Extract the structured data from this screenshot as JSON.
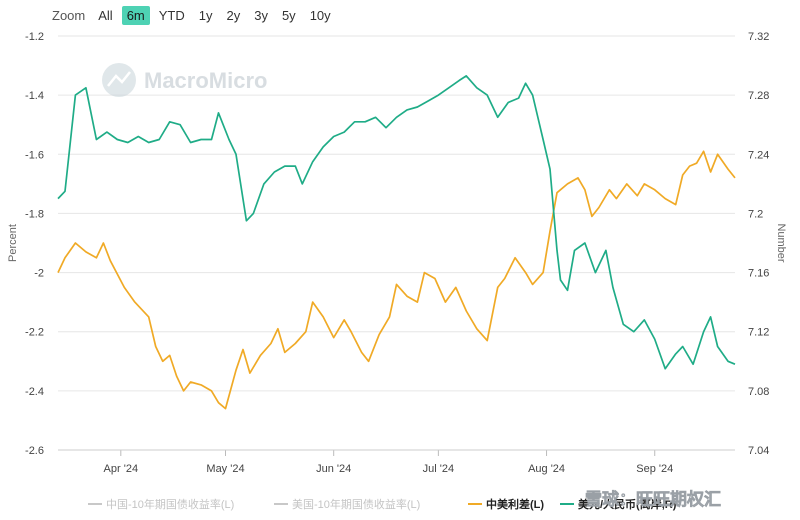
{
  "toolbar": {
    "zoom_label": "Zoom",
    "buttons": [
      "All",
      "6m",
      "YTD",
      "1y",
      "2y",
      "3y",
      "5y",
      "10y"
    ],
    "active": "6m"
  },
  "watermark": "MacroMicro",
  "footer_mark": "雪球：旺旺期权汇",
  "colors": {
    "spread": "#f0aa26",
    "usdcny": "#1fac87",
    "hidden": "#c8c8c8",
    "grid": "#e6e6e6",
    "active_button": "#4ed2b4"
  },
  "chart_data": {
    "type": "line",
    "x_labels": [
      "Apr '24",
      "May '24",
      "Jun '24",
      "Jul '24",
      "Aug '24",
      "Sep '24"
    ],
    "x_range": [
      "2024-03-14",
      "2024-09-24"
    ],
    "left_axis": {
      "title": "Percent",
      "ylim": [
        -2.6,
        -1.2
      ],
      "ticks": [
        "-1.2",
        "-1.4",
        "-1.6",
        "-1.8",
        "-2",
        "-2.2",
        "-2.4",
        "-2.6"
      ]
    },
    "right_axis": {
      "title": "Number",
      "ylim": [
        7.04,
        7.32
      ],
      "ticks": [
        "7.32",
        "7.28",
        "7.24",
        "7.2",
        "7.16",
        "7.12",
        "7.08",
        "7.04"
      ]
    },
    "legend": [
      {
        "name": "中国-10年期国债收益率(L)",
        "visible": false
      },
      {
        "name": "美国-10年期国债收益率(L)",
        "visible": false
      },
      {
        "name": "中美利差(L)",
        "visible": true
      },
      {
        "name": "美元/人民币(离岸,R)",
        "visible": true
      }
    ],
    "series": [
      {
        "name": "中美利差(L)",
        "axis": "left",
        "points": [
          [
            "2024-03-14",
            -2.0
          ],
          [
            "2024-03-16",
            -1.95
          ],
          [
            "2024-03-19",
            -1.9
          ],
          [
            "2024-03-22",
            -1.93
          ],
          [
            "2024-03-25",
            -1.95
          ],
          [
            "2024-03-27",
            -1.9
          ],
          [
            "2024-03-29",
            -1.96
          ],
          [
            "2024-04-02",
            -2.05
          ],
          [
            "2024-04-05",
            -2.1
          ],
          [
            "2024-04-09",
            -2.15
          ],
          [
            "2024-04-11",
            -2.25
          ],
          [
            "2024-04-13",
            -2.3
          ],
          [
            "2024-04-15",
            -2.28
          ],
          [
            "2024-04-17",
            -2.35
          ],
          [
            "2024-04-19",
            -2.4
          ],
          [
            "2024-04-21",
            -2.37
          ],
          [
            "2024-04-24",
            -2.38
          ],
          [
            "2024-04-27",
            -2.4
          ],
          [
            "2024-04-29",
            -2.44
          ],
          [
            "2024-05-01",
            -2.46
          ],
          [
            "2024-05-04",
            -2.33
          ],
          [
            "2024-05-06",
            -2.26
          ],
          [
            "2024-05-08",
            -2.34
          ],
          [
            "2024-05-11",
            -2.28
          ],
          [
            "2024-05-14",
            -2.24
          ],
          [
            "2024-05-16",
            -2.19
          ],
          [
            "2024-05-18",
            -2.27
          ],
          [
            "2024-05-21",
            -2.24
          ],
          [
            "2024-05-24",
            -2.2
          ],
          [
            "2024-05-26",
            -2.1
          ],
          [
            "2024-05-29",
            -2.15
          ],
          [
            "2024-06-01",
            -2.22
          ],
          [
            "2024-06-04",
            -2.16
          ],
          [
            "2024-06-06",
            -2.2
          ],
          [
            "2024-06-09",
            -2.27
          ],
          [
            "2024-06-11",
            -2.3
          ],
          [
            "2024-06-14",
            -2.21
          ],
          [
            "2024-06-17",
            -2.15
          ],
          [
            "2024-06-19",
            -2.04
          ],
          [
            "2024-06-22",
            -2.08
          ],
          [
            "2024-06-25",
            -2.1
          ],
          [
            "2024-06-27",
            -2.0
          ],
          [
            "2024-06-30",
            -2.02
          ],
          [
            "2024-07-03",
            -2.1
          ],
          [
            "2024-07-06",
            -2.05
          ],
          [
            "2024-07-09",
            -2.13
          ],
          [
            "2024-07-12",
            -2.19
          ],
          [
            "2024-07-15",
            -2.23
          ],
          [
            "2024-07-18",
            -2.05
          ],
          [
            "2024-07-20",
            -2.02
          ],
          [
            "2024-07-23",
            -1.95
          ],
          [
            "2024-07-26",
            -2.0
          ],
          [
            "2024-07-28",
            -2.04
          ],
          [
            "2024-07-31",
            -2.0
          ],
          [
            "2024-08-02",
            -1.86
          ],
          [
            "2024-08-04",
            -1.73
          ],
          [
            "2024-08-07",
            -1.7
          ],
          [
            "2024-08-10",
            -1.68
          ],
          [
            "2024-08-12",
            -1.72
          ],
          [
            "2024-08-14",
            -1.81
          ],
          [
            "2024-08-16",
            -1.78
          ],
          [
            "2024-08-19",
            -1.72
          ],
          [
            "2024-08-21",
            -1.75
          ],
          [
            "2024-08-24",
            -1.7
          ],
          [
            "2024-08-27",
            -1.74
          ],
          [
            "2024-08-29",
            -1.7
          ],
          [
            "2024-09-01",
            -1.72
          ],
          [
            "2024-09-04",
            -1.75
          ],
          [
            "2024-09-07",
            -1.77
          ],
          [
            "2024-09-09",
            -1.67
          ],
          [
            "2024-09-11",
            -1.64
          ],
          [
            "2024-09-13",
            -1.63
          ],
          [
            "2024-09-15",
            -1.59
          ],
          [
            "2024-09-17",
            -1.66
          ],
          [
            "2024-09-19",
            -1.6
          ],
          [
            "2024-09-22",
            -1.65
          ],
          [
            "2024-09-24",
            -1.68
          ]
        ]
      },
      {
        "name": "美元/人民币(离岸,R)",
        "axis": "right",
        "points": [
          [
            "2024-03-14",
            7.21
          ],
          [
            "2024-03-16",
            7.215
          ],
          [
            "2024-03-19",
            7.28
          ],
          [
            "2024-03-22",
            7.285
          ],
          [
            "2024-03-25",
            7.25
          ],
          [
            "2024-03-28",
            7.255
          ],
          [
            "2024-03-31",
            7.25
          ],
          [
            "2024-04-03",
            7.248
          ],
          [
            "2024-04-06",
            7.252
          ],
          [
            "2024-04-09",
            7.248
          ],
          [
            "2024-04-12",
            7.25
          ],
          [
            "2024-04-15",
            7.262
          ],
          [
            "2024-04-18",
            7.26
          ],
          [
            "2024-04-21",
            7.248
          ],
          [
            "2024-04-24",
            7.25
          ],
          [
            "2024-04-27",
            7.25
          ],
          [
            "2024-04-29",
            7.268
          ],
          [
            "2024-05-02",
            7.25
          ],
          [
            "2024-05-04",
            7.24
          ],
          [
            "2024-05-07",
            7.195
          ],
          [
            "2024-05-09",
            7.2
          ],
          [
            "2024-05-12",
            7.22
          ],
          [
            "2024-05-15",
            7.228
          ],
          [
            "2024-05-18",
            7.232
          ],
          [
            "2024-05-21",
            7.232
          ],
          [
            "2024-05-23",
            7.22
          ],
          [
            "2024-05-26",
            7.235
          ],
          [
            "2024-05-29",
            7.245
          ],
          [
            "2024-06-01",
            7.252
          ],
          [
            "2024-06-04",
            7.255
          ],
          [
            "2024-06-07",
            7.262
          ],
          [
            "2024-06-10",
            7.262
          ],
          [
            "2024-06-13",
            7.265
          ],
          [
            "2024-06-16",
            7.258
          ],
          [
            "2024-06-19",
            7.265
          ],
          [
            "2024-06-22",
            7.27
          ],
          [
            "2024-06-25",
            7.272
          ],
          [
            "2024-06-28",
            7.276
          ],
          [
            "2024-07-01",
            7.28
          ],
          [
            "2024-07-04",
            7.285
          ],
          [
            "2024-07-07",
            7.29
          ],
          [
            "2024-07-09",
            7.293
          ],
          [
            "2024-07-12",
            7.285
          ],
          [
            "2024-07-15",
            7.28
          ],
          [
            "2024-07-18",
            7.265
          ],
          [
            "2024-07-21",
            7.275
          ],
          [
            "2024-07-24",
            7.278
          ],
          [
            "2024-07-26",
            7.288
          ],
          [
            "2024-07-28",
            7.28
          ],
          [
            "2024-07-31",
            7.25
          ],
          [
            "2024-08-02",
            7.23
          ],
          [
            "2024-08-04",
            7.175
          ],
          [
            "2024-08-05",
            7.155
          ],
          [
            "2024-08-07",
            7.148
          ],
          [
            "2024-08-09",
            7.175
          ],
          [
            "2024-08-12",
            7.18
          ],
          [
            "2024-08-15",
            7.16
          ],
          [
            "2024-08-18",
            7.175
          ],
          [
            "2024-08-20",
            7.15
          ],
          [
            "2024-08-23",
            7.125
          ],
          [
            "2024-08-26",
            7.12
          ],
          [
            "2024-08-29",
            7.128
          ],
          [
            "2024-09-01",
            7.115
          ],
          [
            "2024-09-04",
            7.095
          ],
          [
            "2024-09-07",
            7.105
          ],
          [
            "2024-09-09",
            7.11
          ],
          [
            "2024-09-12",
            7.098
          ],
          [
            "2024-09-15",
            7.12
          ],
          [
            "2024-09-17",
            7.13
          ],
          [
            "2024-09-19",
            7.11
          ],
          [
            "2024-09-22",
            7.1
          ],
          [
            "2024-09-24",
            7.098
          ]
        ]
      }
    ]
  }
}
